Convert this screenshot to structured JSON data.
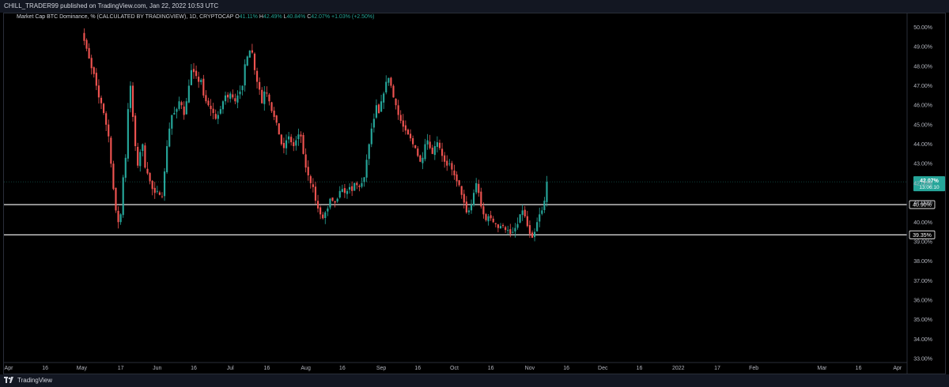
{
  "header": {
    "publish_line": "CHILL_TRADER99 published on TradingView.com, Jan 22, 2022 10:53 UTC"
  },
  "footer": {
    "brand": "TradingView"
  },
  "legend": {
    "symbol": "Market Cap BTC Dominance, %",
    "source": "(CALCULATED BY TRADINGVIEW), 1D, CRYPTOCAP",
    "o_label": "O",
    "o": "41.11%",
    "h_label": "H",
    "h": "42.49%",
    "l_label": "L",
    "l": "40.84%",
    "c_label": "C",
    "c": "42.07%",
    "change": "+1.03% (+2.50%)"
  },
  "colors": {
    "up": "#26a69a",
    "down": "#ef5350",
    "level_line": "#ffffff",
    "background": "#000000",
    "axis_text": "#b2b5be"
  },
  "chart_data": {
    "type": "candlestick",
    "title": "Market Cap BTC Dominance, %",
    "ylim": [
      33.0,
      50.4
    ],
    "yticks": [
      "50.00%",
      "49.00%",
      "48.00%",
      "47.00%",
      "46.00%",
      "45.00%",
      "44.00%",
      "43.00%",
      "42.00%",
      "41.00%",
      "40.00%",
      "39.00%",
      "38.00%",
      "37.00%",
      "36.00%",
      "35.00%",
      "34.00%",
      "33.00%"
    ],
    "xticks": [
      {
        "date": "2021-04-01",
        "label": "Apr"
      },
      {
        "date": "2021-04-16",
        "label": "16"
      },
      {
        "date": "2021-05-01",
        "label": "May"
      },
      {
        "date": "2021-05-17",
        "label": "17"
      },
      {
        "date": "2021-06-01",
        "label": "Jun"
      },
      {
        "date": "2021-06-16",
        "label": "16"
      },
      {
        "date": "2021-07-01",
        "label": "Jul"
      },
      {
        "date": "2021-07-16",
        "label": "16"
      },
      {
        "date": "2021-08-01",
        "label": "Aug"
      },
      {
        "date": "2021-08-16",
        "label": "16"
      },
      {
        "date": "2021-09-01",
        "label": "Sep"
      },
      {
        "date": "2021-09-16",
        "label": "16"
      },
      {
        "date": "2021-10-01",
        "label": "Oct"
      },
      {
        "date": "2021-10-16",
        "label": "16"
      },
      {
        "date": "2021-11-01",
        "label": "Nov"
      },
      {
        "date": "2021-11-16",
        "label": "16"
      },
      {
        "date": "2021-12-01",
        "label": "Dec"
      },
      {
        "date": "2021-12-16",
        "label": "16"
      },
      {
        "date": "2022-01-01",
        "label": "2022"
      },
      {
        "date": "2022-01-17",
        "label": "17"
      },
      {
        "date": "2022-02-01",
        "label": "Feb"
      },
      {
        "date": "2022-03-01",
        "label": "Mar"
      },
      {
        "date": "2022-03-16",
        "label": "16"
      },
      {
        "date": "2022-04-01",
        "label": "Apr"
      }
    ],
    "x_domain": [
      "2021-04-01",
      "2022-04-03"
    ],
    "current_price": {
      "value": 42.07,
      "label": "42.07%",
      "countdown": "13:06:10"
    },
    "levels": [
      {
        "value": 40.9,
        "label": "40.90%"
      },
      {
        "value": 39.35,
        "label": "39.35%"
      }
    ],
    "start_date": "2021-04-28",
    "closes": [
      51.0,
      50.6,
      50.2,
      49.7,
      49.3,
      48.9,
      48.4,
      47.9,
      47.6,
      47.0,
      46.4,
      46.1,
      45.6,
      45.0,
      44.4,
      43.0,
      41.7,
      40.6,
      40.0,
      40.4,
      42.3,
      43.3,
      45.8,
      47.0,
      45.4,
      43.9,
      42.9,
      43.6,
      44.0,
      42.8,
      42.5,
      42.1,
      41.7,
      41.5,
      41.6,
      41.4,
      41.3,
      42.6,
      43.9,
      44.8,
      45.5,
      45.6,
      45.8,
      46.2,
      46.0,
      45.5,
      46.2,
      47.0,
      47.8,
      47.7,
      47.5,
      47.2,
      47.3,
      46.5,
      46.2,
      46.0,
      45.8,
      45.6,
      45.3,
      45.5,
      45.8,
      46.2,
      46.5,
      46.4,
      46.6,
      46.4,
      46.2,
      46.5,
      46.7,
      47.0,
      48.1,
      48.5,
      48.8,
      48.7,
      47.8,
      47.2,
      46.8,
      46.1,
      46.7,
      46.6,
      46.2,
      45.7,
      45.4,
      45.1,
      44.5,
      44.0,
      43.8,
      44.2,
      44.4,
      44.1,
      43.9,
      44.2,
      44.5,
      44.4,
      43.5,
      42.8,
      42.4,
      42.0,
      41.8,
      41.1,
      40.7,
      40.4,
      40.2,
      40.5,
      40.7,
      41.2,
      41.1,
      41.0,
      41.2,
      41.6,
      41.7,
      41.5,
      41.6,
      41.8,
      41.6,
      42.0,
      41.9,
      41.8,
      42.0,
      42.3,
      43.2,
      44.0,
      44.8,
      45.3,
      46.0,
      45.6,
      46.2,
      46.6,
      47.2,
      47.4,
      47.0,
      46.4,
      46.0,
      45.5,
      45.2,
      44.9,
      44.7,
      44.5,
      44.3,
      44.0,
      43.8,
      43.4,
      43.1,
      43.3,
      44.0,
      44.2,
      43.8,
      43.5,
      43.9,
      44.1,
      43.8,
      43.4,
      43.1,
      42.9,
      43.0,
      42.7,
      42.4,
      42.1,
      41.9,
      41.4,
      41.0,
      40.5,
      40.6,
      40.9,
      41.5,
      42.0,
      41.5,
      40.8,
      40.4,
      40.1,
      40.3,
      40.2,
      40.0,
      39.9,
      39.7,
      39.8,
      39.8,
      39.6,
      39.6,
      39.4,
      39.5,
      39.7,
      39.9,
      40.4,
      40.6,
      40.3,
      39.8,
      39.4,
      39.2,
      39.5,
      40.0,
      40.4,
      40.6,
      41.1,
      42.07
    ]
  }
}
